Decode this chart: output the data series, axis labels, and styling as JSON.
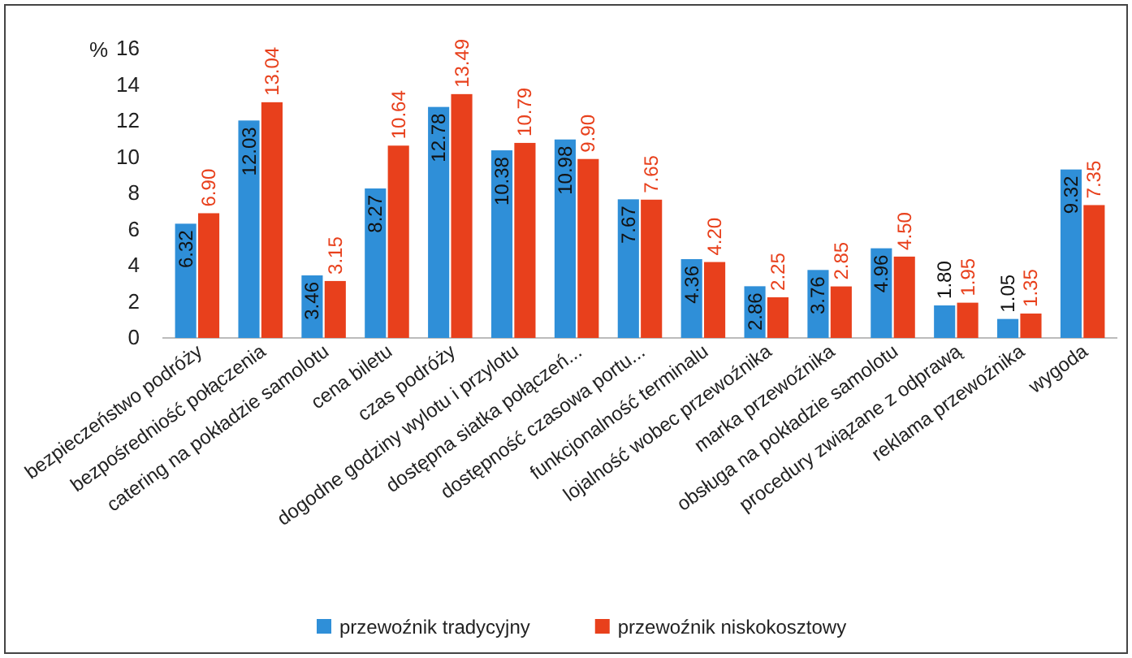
{
  "chart_data": {
    "type": "bar",
    "ylabel": "%",
    "categories": [
      "bezpieczeństwo podróży",
      "bezpośredniość połączenia",
      "catering na pokładzie samolotu",
      "cena biletu",
      "czas podróży",
      "dogodne godziny wylotu i przylotu",
      "dostępna siatka połączeń...",
      "dostępność czasowa portu...",
      "funkcjonalność terminalu",
      "lojalność wobec przewoźnika",
      "marka przewoźnika",
      "obsługa na pokładzie samolotu",
      "procedury związane z odprawą",
      "reklama przewoźnika",
      "wygoda"
    ],
    "series": [
      {
        "name": "przewoźnik tradycyjny",
        "color": "#2f8fd8",
        "values": [
          6.32,
          12.03,
          3.46,
          8.27,
          12.78,
          10.38,
          10.98,
          7.67,
          4.36,
          2.86,
          3.76,
          4.96,
          1.8,
          1.05,
          9.32
        ],
        "value_labels": [
          "6.32",
          "12.03",
          "3.46",
          "8.27",
          "12.78",
          "10.38",
          "10.98",
          "7.67",
          "4.36",
          "2.86",
          "3.76",
          "4.96",
          "1.80",
          "1.05",
          "9.32"
        ]
      },
      {
        "name": "przewoźnik niskokosztowy",
        "color": "#e8401c",
        "values": [
          6.9,
          13.04,
          3.15,
          10.64,
          13.49,
          10.79,
          9.9,
          7.65,
          4.2,
          2.25,
          2.85,
          4.5,
          1.95,
          1.35,
          7.35
        ],
        "value_labels": [
          "6.90",
          "13.04",
          "3.15",
          "10.64",
          "13.49",
          "10.79",
          "9.90",
          "7.65",
          "4.20",
          "2.25",
          "2.85",
          "4.50",
          "1.95",
          "1.35",
          "7.35"
        ]
      }
    ],
    "ylim": [
      0,
      16
    ],
    "yticks": [
      0,
      2,
      4,
      6,
      8,
      10,
      12,
      14,
      16
    ],
    "grid": false,
    "legend": "bottom"
  }
}
